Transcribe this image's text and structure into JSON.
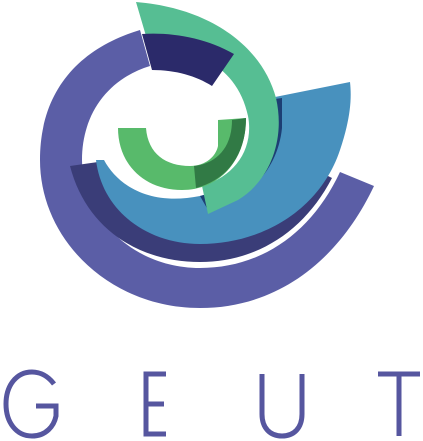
{
  "brand": {
    "wordmark_letters": [
      "G",
      "E",
      "U",
      "T"
    ],
    "colors": {
      "wordmark": "#56569F",
      "outer_ring": "#5B5EA6",
      "outer_ring_overlap": "#3A3D78",
      "blue_ring": "#4891BE",
      "blue_ring_overlap": "#1D3E73",
      "teal_ring": "#56BE93",
      "teal_ring_overlap": "#2B2A6A",
      "inner_ring": "#58BA6B",
      "inner_ring_overlap": "#317A45"
    },
    "icon_name": "geut-logo-icon"
  }
}
